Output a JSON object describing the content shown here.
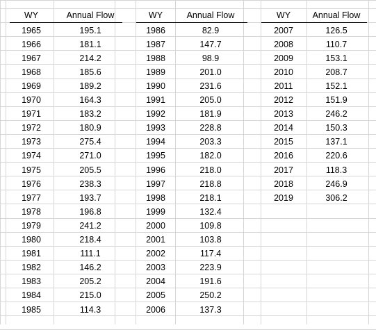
{
  "tables": [
    {
      "headers": {
        "wy": "WY",
        "flow": "Annual Flow"
      },
      "rows": [
        {
          "wy": "1965",
          "flow": "195.1"
        },
        {
          "wy": "1966",
          "flow": "181.1"
        },
        {
          "wy": "1967",
          "flow": "214.2"
        },
        {
          "wy": "1968",
          "flow": "185.6"
        },
        {
          "wy": "1969",
          "flow": "189.2"
        },
        {
          "wy": "1970",
          "flow": "164.3"
        },
        {
          "wy": "1971",
          "flow": "183.2"
        },
        {
          "wy": "1972",
          "flow": "180.9"
        },
        {
          "wy": "1973",
          "flow": "275.4"
        },
        {
          "wy": "1974",
          "flow": "271.0"
        },
        {
          "wy": "1975",
          "flow": "205.5"
        },
        {
          "wy": "1976",
          "flow": "238.3"
        },
        {
          "wy": "1977",
          "flow": "193.7"
        },
        {
          "wy": "1978",
          "flow": "196.8"
        },
        {
          "wy": "1979",
          "flow": "241.2"
        },
        {
          "wy": "1980",
          "flow": "218.4"
        },
        {
          "wy": "1981",
          "flow": "111.1"
        },
        {
          "wy": "1982",
          "flow": "146.2"
        },
        {
          "wy": "1983",
          "flow": "205.2"
        },
        {
          "wy": "1984",
          "flow": "215.0"
        },
        {
          "wy": "1985",
          "flow": "114.3"
        }
      ]
    },
    {
      "headers": {
        "wy": "WY",
        "flow": "Annual Flow"
      },
      "rows": [
        {
          "wy": "1986",
          "flow": "82.9"
        },
        {
          "wy": "1987",
          "flow": "147.7"
        },
        {
          "wy": "1988",
          "flow": "98.9"
        },
        {
          "wy": "1989",
          "flow": "201.0"
        },
        {
          "wy": "1990",
          "flow": "231.6"
        },
        {
          "wy": "1991",
          "flow": "205.0"
        },
        {
          "wy": "1992",
          "flow": "181.9"
        },
        {
          "wy": "1993",
          "flow": "228.8"
        },
        {
          "wy": "1994",
          "flow": "203.3"
        },
        {
          "wy": "1995",
          "flow": "182.0"
        },
        {
          "wy": "1996",
          "flow": "218.0"
        },
        {
          "wy": "1997",
          "flow": "218.8"
        },
        {
          "wy": "1998",
          "flow": "218.1"
        },
        {
          "wy": "1999",
          "flow": "132.4"
        },
        {
          "wy": "2000",
          "flow": "109.8"
        },
        {
          "wy": "2001",
          "flow": "103.8"
        },
        {
          "wy": "2002",
          "flow": "117.4"
        },
        {
          "wy": "2003",
          "flow": "223.9"
        },
        {
          "wy": "2004",
          "flow": "191.6"
        },
        {
          "wy": "2005",
          "flow": "250.2"
        },
        {
          "wy": "2006",
          "flow": "137.3"
        }
      ]
    },
    {
      "headers": {
        "wy": "WY",
        "flow": "Annual Flow"
      },
      "rows": [
        {
          "wy": "2007",
          "flow": "126.5"
        },
        {
          "wy": "2008",
          "flow": "110.7"
        },
        {
          "wy": "2009",
          "flow": "153.1"
        },
        {
          "wy": "2010",
          "flow": "208.7"
        },
        {
          "wy": "2011",
          "flow": "152.1"
        },
        {
          "wy": "2012",
          "flow": "151.9"
        },
        {
          "wy": "2013",
          "flow": "246.2"
        },
        {
          "wy": "2014",
          "flow": "150.3"
        },
        {
          "wy": "2015",
          "flow": "137.1"
        },
        {
          "wy": "2016",
          "flow": "220.6"
        },
        {
          "wy": "2017",
          "flow": "118.3"
        },
        {
          "wy": "2018",
          "flow": "246.9"
        },
        {
          "wy": "2019",
          "flow": "306.2"
        }
      ]
    }
  ]
}
